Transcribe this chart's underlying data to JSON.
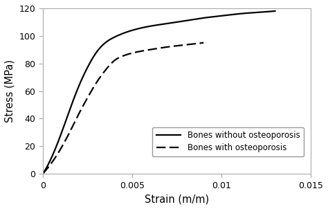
{
  "title": "",
  "xlabel": "Strain (m/m)",
  "ylabel": "Stress (MPa)",
  "xlim": [
    0,
    0.015
  ],
  "ylim": [
    0,
    120
  ],
  "xticks": [
    0,
    0.005,
    0.01,
    0.015
  ],
  "yticks": [
    0,
    20,
    40,
    60,
    80,
    100,
    120
  ],
  "legend_labels": [
    "Bones without osteoporosis",
    "Bones with osteoporosis"
  ],
  "line1_color": "#000000",
  "line2_color": "#000000",
  "line1_style": "solid",
  "line2_style": "dashed",
  "line_width": 1.6,
  "background_color": "#ffffff",
  "legend_fontsize": 8.5,
  "axis_fontsize": 10.5,
  "tick_fontsize": 9,
  "curve1_x": [
    0,
    0.0005,
    0.001,
    0.0015,
    0.002,
    0.0025,
    0.003,
    0.0035,
    0.004,
    0.005,
    0.006,
    0.007,
    0.008,
    0.009,
    0.01,
    0.011,
    0.012,
    0.013
  ],
  "curve1_y": [
    0,
    12,
    28,
    46,
    63,
    77,
    88,
    95,
    99,
    104,
    107,
    109,
    111,
    113,
    114.5,
    116,
    117,
    118
  ],
  "curve2_x": [
    0,
    0.0005,
    0.001,
    0.0015,
    0.002,
    0.0025,
    0.003,
    0.0035,
    0.004,
    0.0045,
    0.005,
    0.006,
    0.007,
    0.008,
    0.009
  ],
  "curve2_y": [
    0,
    8,
    18,
    30,
    43,
    55,
    66,
    75,
    82,
    85.5,
    87.5,
    90,
    92,
    93.5,
    95
  ]
}
